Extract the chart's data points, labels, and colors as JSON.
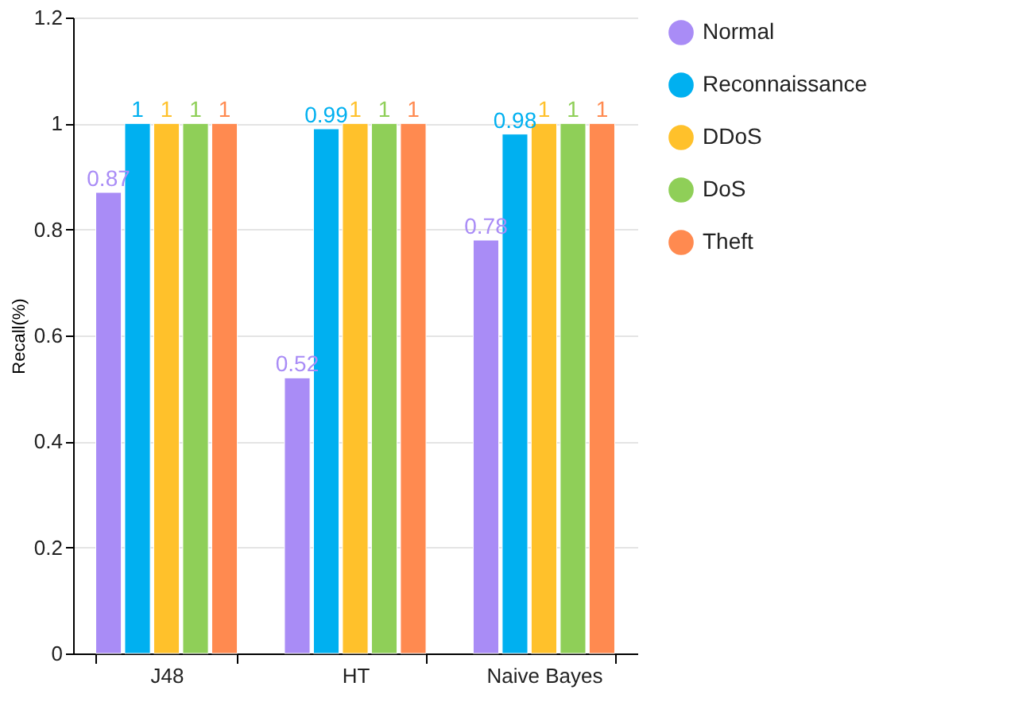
{
  "chart_data": {
    "type": "bar",
    "ylabel": "Recall(%)",
    "categories": [
      "J48",
      "HT",
      "Naive Bayes"
    ],
    "series": [
      {
        "name": "Normal",
        "color": "#a98cf6",
        "values": [
          0.87,
          0.52,
          0.78
        ]
      },
      {
        "name": "Reconnaissance",
        "color": "#00b0f0",
        "values": [
          1,
          0.99,
          0.98
        ]
      },
      {
        "name": "DDoS",
        "color": "#ffc12b",
        "values": [
          1,
          1,
          1
        ]
      },
      {
        "name": "DoS",
        "color": "#8fcf58",
        "values": [
          1,
          1,
          1
        ]
      },
      {
        "name": "Theft",
        "color": "#ff8a50",
        "values": [
          1,
          1,
          1
        ]
      }
    ],
    "ylim": [
      0,
      1.2
    ],
    "yticks": [
      0,
      0.2,
      0.4,
      0.6,
      0.8,
      1,
      1.2
    ],
    "grid": "y",
    "legend": "right",
    "data_labels": true
  }
}
